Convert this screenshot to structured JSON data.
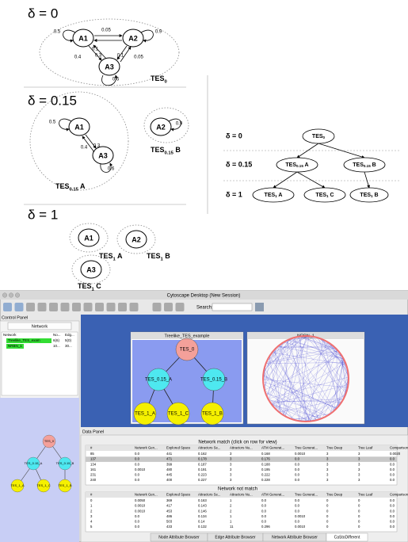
{
  "figure": {
    "panels": [
      {
        "delta_label": "δ = 0",
        "nodes": [
          "A1",
          "A2",
          "A3"
        ],
        "edge_labels": [
          "0.5",
          "0.05",
          "0.9",
          "0.3",
          "0.1",
          "0.4",
          "0.1",
          "0.05",
          "0.6"
        ],
        "tes_labels": [
          {
            "base": "TES",
            "sub": "0"
          }
        ]
      },
      {
        "delta_label": "δ = 0.15",
        "nodes": [
          "A1",
          "A3",
          "A2"
        ],
        "edge_labels": [
          "0.5",
          "0.3",
          "0.4",
          "0.6",
          "0.9"
        ],
        "tes_labels": [
          {
            "base": "TES",
            "sub": "0.15",
            "suffix": " B"
          },
          {
            "base": "TES",
            "sub": "0.15",
            "suffix": " A"
          }
        ]
      },
      {
        "delta_label": "δ = 1",
        "nodes": [
          "A1",
          "A2",
          "A3"
        ],
        "tes_labels": [
          {
            "base": "TES",
            "sub": "1",
            "suffix": " A"
          },
          {
            "base": "TES",
            "sub": "1",
            "suffix": " B"
          },
          {
            "base": "TES",
            "sub": "1",
            "suffix": " C"
          }
        ]
      }
    ],
    "tree": {
      "levels": [
        "δ = 0",
        "δ = 0.15",
        "δ = 1"
      ],
      "nodes": [
        {
          "base": "TES",
          "sub": "0"
        },
        {
          "base": "TES",
          "sub": "0.15",
          "suffix": " A"
        },
        {
          "base": "TES",
          "sub": "0.15",
          "suffix": " B"
        },
        {
          "base": "TES",
          "sub": "1",
          "suffix": " A"
        },
        {
          "base": "TES",
          "sub": "1",
          "suffix": " C"
        },
        {
          "base": "TES",
          "sub": "1",
          "suffix": " B"
        }
      ]
    }
  },
  "app": {
    "window_title": "Cytoscape Desktop (New Session)",
    "search_label": "Search:",
    "control_panel": {
      "title": "Control Panel",
      "tab": "Network",
      "headers": [
        "Network",
        "No...",
        "Edg..."
      ],
      "rows": [
        [
          "Treelike_TES_exam",
          "6(6)",
          "5(0)"
        ],
        [
          "NRBN_1",
          "10...",
          "30..."
        ]
      ]
    },
    "network_windows": [
      "Treelike_TES_example",
      "NRBN_1"
    ],
    "graph_nodes": [
      "TES_0",
      "TES_0.15_A",
      "TES_0.15_B",
      "TES_1_A",
      "TES_1_C",
      "TES_1_B"
    ],
    "data_panel": {
      "title": "Data Panel",
      "match_title": "Network match (click on row for view)",
      "not_match_title": "Network not match",
      "headers": [
        "#",
        "Network Gen...",
        "Explored Space",
        "Attractors Se...",
        "Attractors Nu...",
        "ATM Generat...",
        "Tree Generat...",
        "Tree Deep",
        "Tree Leaf",
        "Comparison..."
      ],
      "match_rows": [
        [
          "85",
          "0.0",
          "441",
          "0.162",
          "3",
          "0.168",
          "0.0010",
          "3",
          "3",
          "0.0020"
        ],
        [
          "137",
          "0.0",
          "471",
          "0.178",
          "3",
          "0.176",
          "0.0",
          "3",
          "3",
          "0.0"
        ],
        [
          "134",
          "0.0",
          "399",
          "0.187",
          "3",
          "0.188",
          "0.0",
          "3",
          "3",
          "0.0"
        ],
        [
          "161",
          "0.0010",
          "480",
          "0.191",
          "3",
          "0.195",
          "0.0",
          "3",
          "3",
          "0.0"
        ],
        [
          "231",
          "0.0",
          "445",
          "0.223",
          "3",
          "0.222",
          "0.0",
          "3",
          "3",
          "0.0"
        ],
        [
          "240",
          "0.0",
          "400",
          "0.227",
          "3",
          "0.228",
          "0.0",
          "3",
          "3",
          "0.0"
        ]
      ],
      "not_match_rows": [
        [
          "0",
          "0.0050",
          "369",
          "0.163",
          "1",
          "0.0",
          "0.0",
          "0",
          "0",
          "0.0"
        ],
        [
          "1",
          "0.0010",
          "417",
          "0.143",
          "2",
          "0.0",
          "0.0",
          "0",
          "0",
          "0.0"
        ],
        [
          "2",
          "0.0010",
          "453",
          "0.146",
          "2",
          "0.0",
          "0.0",
          "0",
          "0",
          "0.0"
        ],
        [
          "3",
          "0.0",
          "486",
          "0.134",
          "1",
          "0.0",
          "0.0010",
          "0",
          "0",
          "0.0"
        ],
        [
          "4",
          "0.0",
          "503",
          "0.14",
          "1",
          "0.0",
          "0.0",
          "0",
          "0",
          "0.0"
        ],
        [
          "5",
          "0.0",
          "433",
          "0.132",
          "11",
          "0.296",
          "0.0010",
          "0",
          "0",
          "0.0"
        ]
      ],
      "tabs": [
        "Node Attribute Browser",
        "Edge Attribute Browser",
        "Network Attribute Browser",
        "CaStoDifferent"
      ]
    }
  }
}
